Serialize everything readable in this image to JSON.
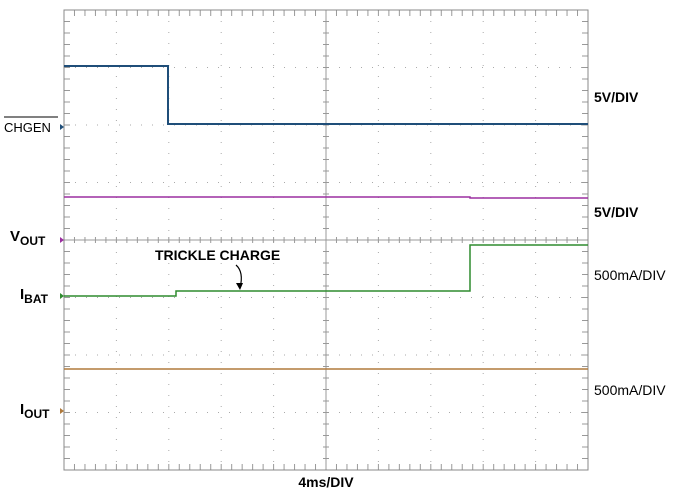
{
  "channels": [
    {
      "name": "CHGEN",
      "scale": "5V/DIV"
    },
    {
      "name": "V",
      "sub": "OUT",
      "scale": "5V/DIV"
    },
    {
      "name": "I",
      "sub": "BAT",
      "scale": "500mA/DIV"
    },
    {
      "name": "I",
      "sub": "OUT",
      "scale": "500mA/DIV"
    }
  ],
  "annotation": "TRICKLE CHARGE",
  "timebase": "4ms/DIV"
}
